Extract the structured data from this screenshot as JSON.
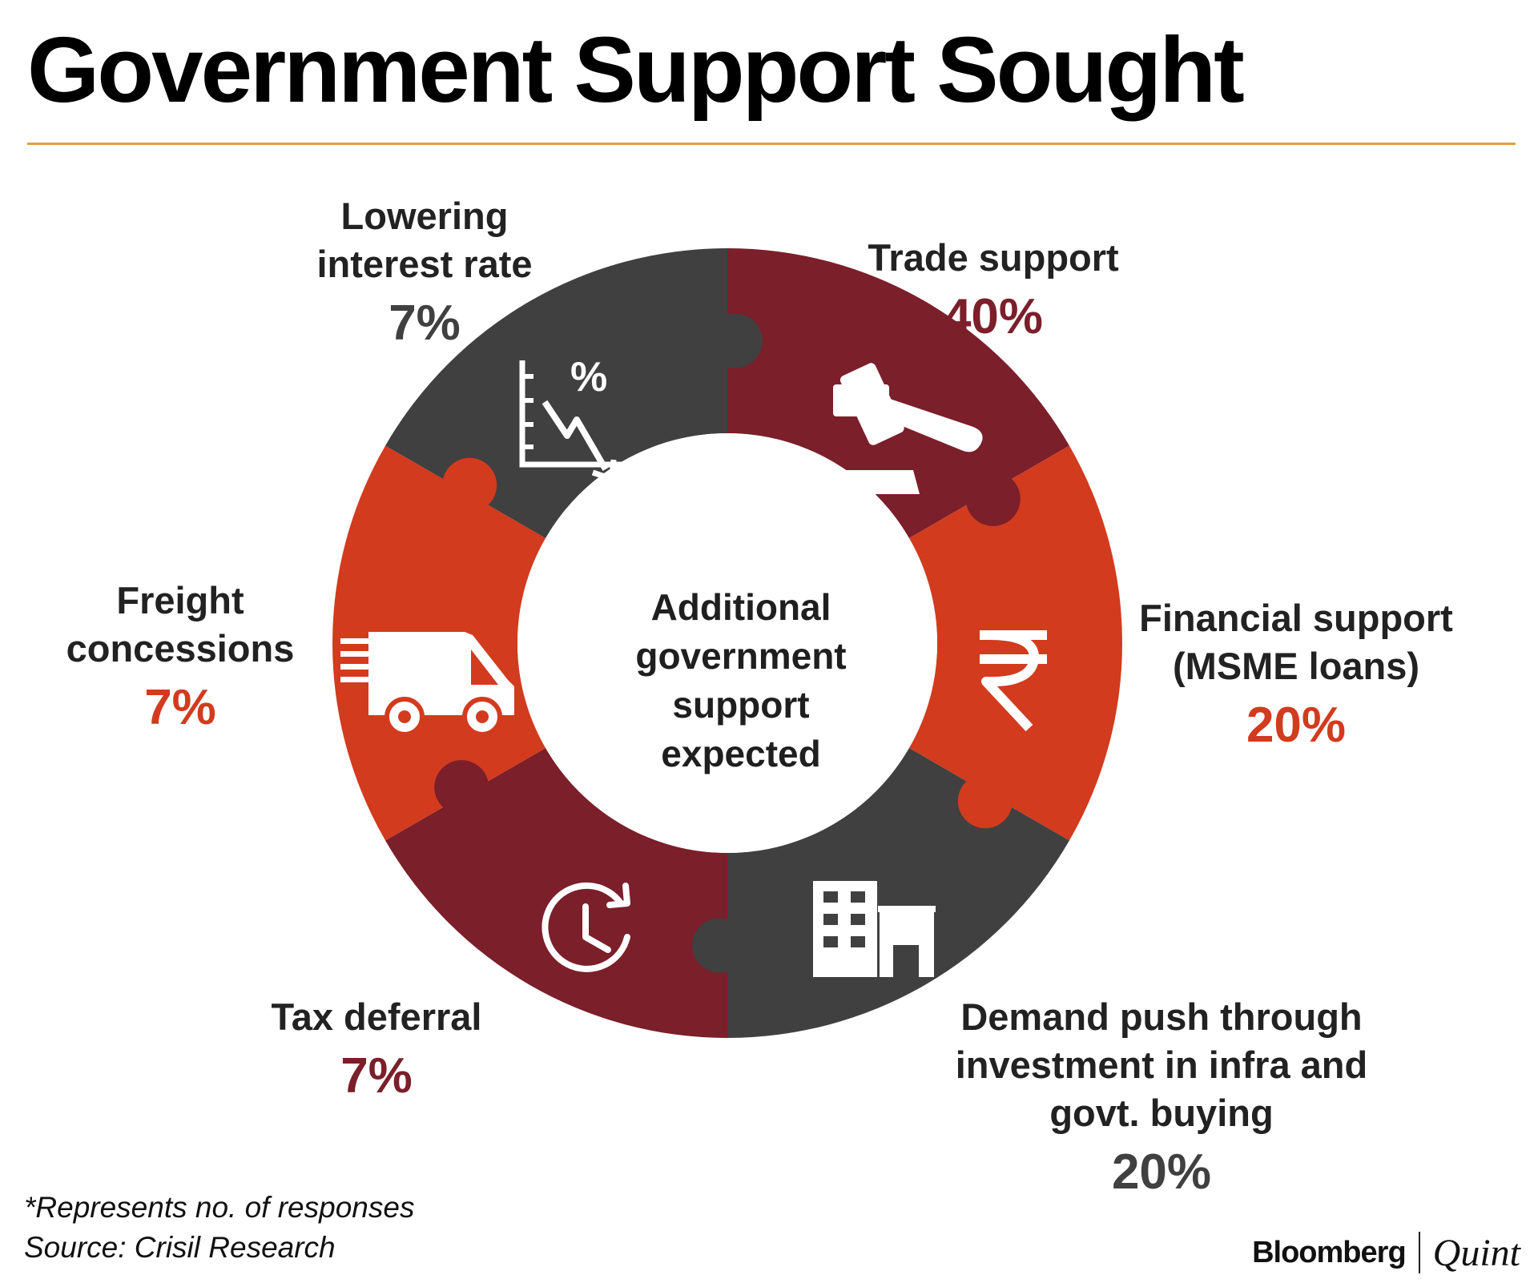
{
  "title": "Government Support Sought",
  "center_label": [
    "Additional",
    "government",
    "support",
    "expected"
  ],
  "chart_data": {
    "type": "pie",
    "categories": [
      "Trade support",
      "Financial support (MSME loans)",
      "Demand push through investment in infra and govt. buying",
      "Tax deferral",
      "Freight concessions",
      "Lowering interest rate"
    ],
    "values": [
      40,
      20,
      20,
      7,
      7,
      7
    ],
    "value_labels": [
      "40%",
      "20%",
      "20%",
      "7%",
      "7%",
      "7%"
    ],
    "colors": [
      "#7b1f2a",
      "#d23b1e",
      "#404040",
      "#7b1f2a",
      "#d23b1e",
      "#404040"
    ],
    "title": "Government Support Sought"
  },
  "labels": [
    {
      "lines": [
        "Trade support"
      ],
      "pct": "40%",
      "pct_color": "#7b1f2a",
      "icon": "gavel-icon"
    },
    {
      "lines": [
        "Financial support",
        "(MSME loans)"
      ],
      "pct": "20%",
      "pct_color": "#d23b1e",
      "icon": "rupee-icon"
    },
    {
      "lines": [
        "Demand push through",
        "investment in infra and",
        "govt. buying"
      ],
      "pct": "20%",
      "pct_color": "#404040",
      "icon": "building-icon"
    },
    {
      "lines": [
        "Tax deferral"
      ],
      "pct": "7%",
      "pct_color": "#7b1f2a",
      "icon": "clock-icon"
    },
    {
      "lines": [
        "Freight",
        "concessions"
      ],
      "pct": "7%",
      "pct_color": "#d23b1e",
      "icon": "truck-icon"
    },
    {
      "lines": [
        "Lowering",
        "interest rate"
      ],
      "pct": "7%",
      "pct_color": "#404040",
      "icon": "interest-chart-icon"
    }
  ],
  "footnote": "*Represents no. of responses",
  "source": "Source: Crisil Research",
  "brand": {
    "left": "Bloomberg",
    "right": "Quint"
  }
}
